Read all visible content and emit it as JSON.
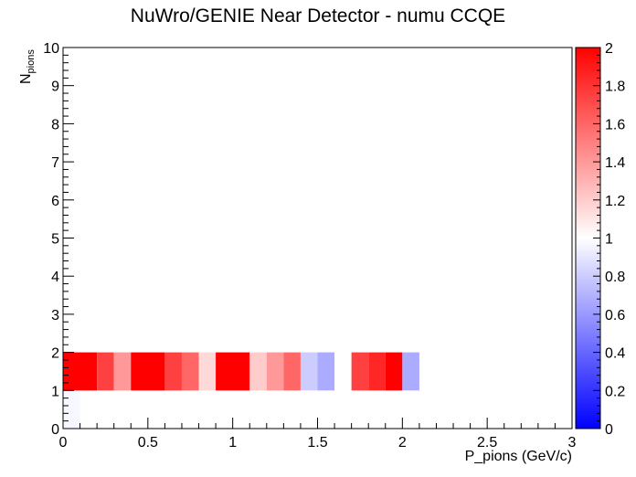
{
  "chart_data": {
    "type": "heatmap",
    "title": "NuWro/GENIE Near Detector - numu CCQE",
    "xlabel": "P_pions (GeV/c)",
    "ylabel_main": "N",
    "ylabel_sub": "pions",
    "xlim": [
      0,
      3
    ],
    "ylim": [
      0,
      10
    ],
    "zlim": [
      0,
      2
    ],
    "x_ticks": [
      "0",
      "0.5",
      "1",
      "1.5",
      "2",
      "2.5",
      "3"
    ],
    "y_ticks": [
      "0",
      "1",
      "2",
      "3",
      "4",
      "5",
      "6",
      "7",
      "8",
      "9",
      "10"
    ],
    "z_ticks": [
      "0",
      "0.2",
      "0.4",
      "0.6",
      "0.8",
      "1",
      "1.2",
      "1.4",
      "1.6",
      "1.8",
      "2"
    ],
    "colorscale": [
      "#0000ff",
      "#ffffff",
      "#ff0000"
    ],
    "cells": [
      {
        "x0": 0.0,
        "x1": 0.1,
        "y0": 0,
        "y1": 1,
        "z": 0.97
      },
      {
        "x0": 0.0,
        "x1": 0.2,
        "y0": 1,
        "y1": 2,
        "z": 2.0
      },
      {
        "x0": 0.2,
        "x1": 0.3,
        "y0": 1,
        "y1": 2,
        "z": 1.75
      },
      {
        "x0": 0.3,
        "x1": 0.4,
        "y0": 1,
        "y1": 2,
        "z": 1.4
      },
      {
        "x0": 0.4,
        "x1": 0.6,
        "y0": 1,
        "y1": 2,
        "z": 2.0
      },
      {
        "x0": 0.6,
        "x1": 0.7,
        "y0": 1,
        "y1": 2,
        "z": 1.75
      },
      {
        "x0": 0.7,
        "x1": 0.8,
        "y0": 1,
        "y1": 2,
        "z": 1.6
      },
      {
        "x0": 0.8,
        "x1": 0.9,
        "y0": 1,
        "y1": 2,
        "z": 1.15
      },
      {
        "x0": 0.9,
        "x1": 1.1,
        "y0": 1,
        "y1": 2,
        "z": 2.0
      },
      {
        "x0": 1.1,
        "x1": 1.2,
        "y0": 1,
        "y1": 2,
        "z": 1.2
      },
      {
        "x0": 1.2,
        "x1": 1.3,
        "y0": 1,
        "y1": 2,
        "z": 1.4
      },
      {
        "x0": 1.3,
        "x1": 1.4,
        "y0": 1,
        "y1": 2,
        "z": 1.6
      },
      {
        "x0": 1.4,
        "x1": 1.5,
        "y0": 1,
        "y1": 2,
        "z": 0.8
      },
      {
        "x0": 1.5,
        "x1": 1.6,
        "y0": 1,
        "y1": 2,
        "z": 0.67
      },
      {
        "x0": 1.7,
        "x1": 1.8,
        "y0": 1,
        "y1": 2,
        "z": 1.75
      },
      {
        "x0": 1.8,
        "x1": 1.9,
        "y0": 1,
        "y1": 2,
        "z": 1.85
      },
      {
        "x0": 1.9,
        "x1": 2.0,
        "y0": 1,
        "y1": 2,
        "z": 2.0
      },
      {
        "x0": 2.0,
        "x1": 2.1,
        "y0": 1,
        "y1": 2,
        "z": 0.67
      }
    ]
  }
}
